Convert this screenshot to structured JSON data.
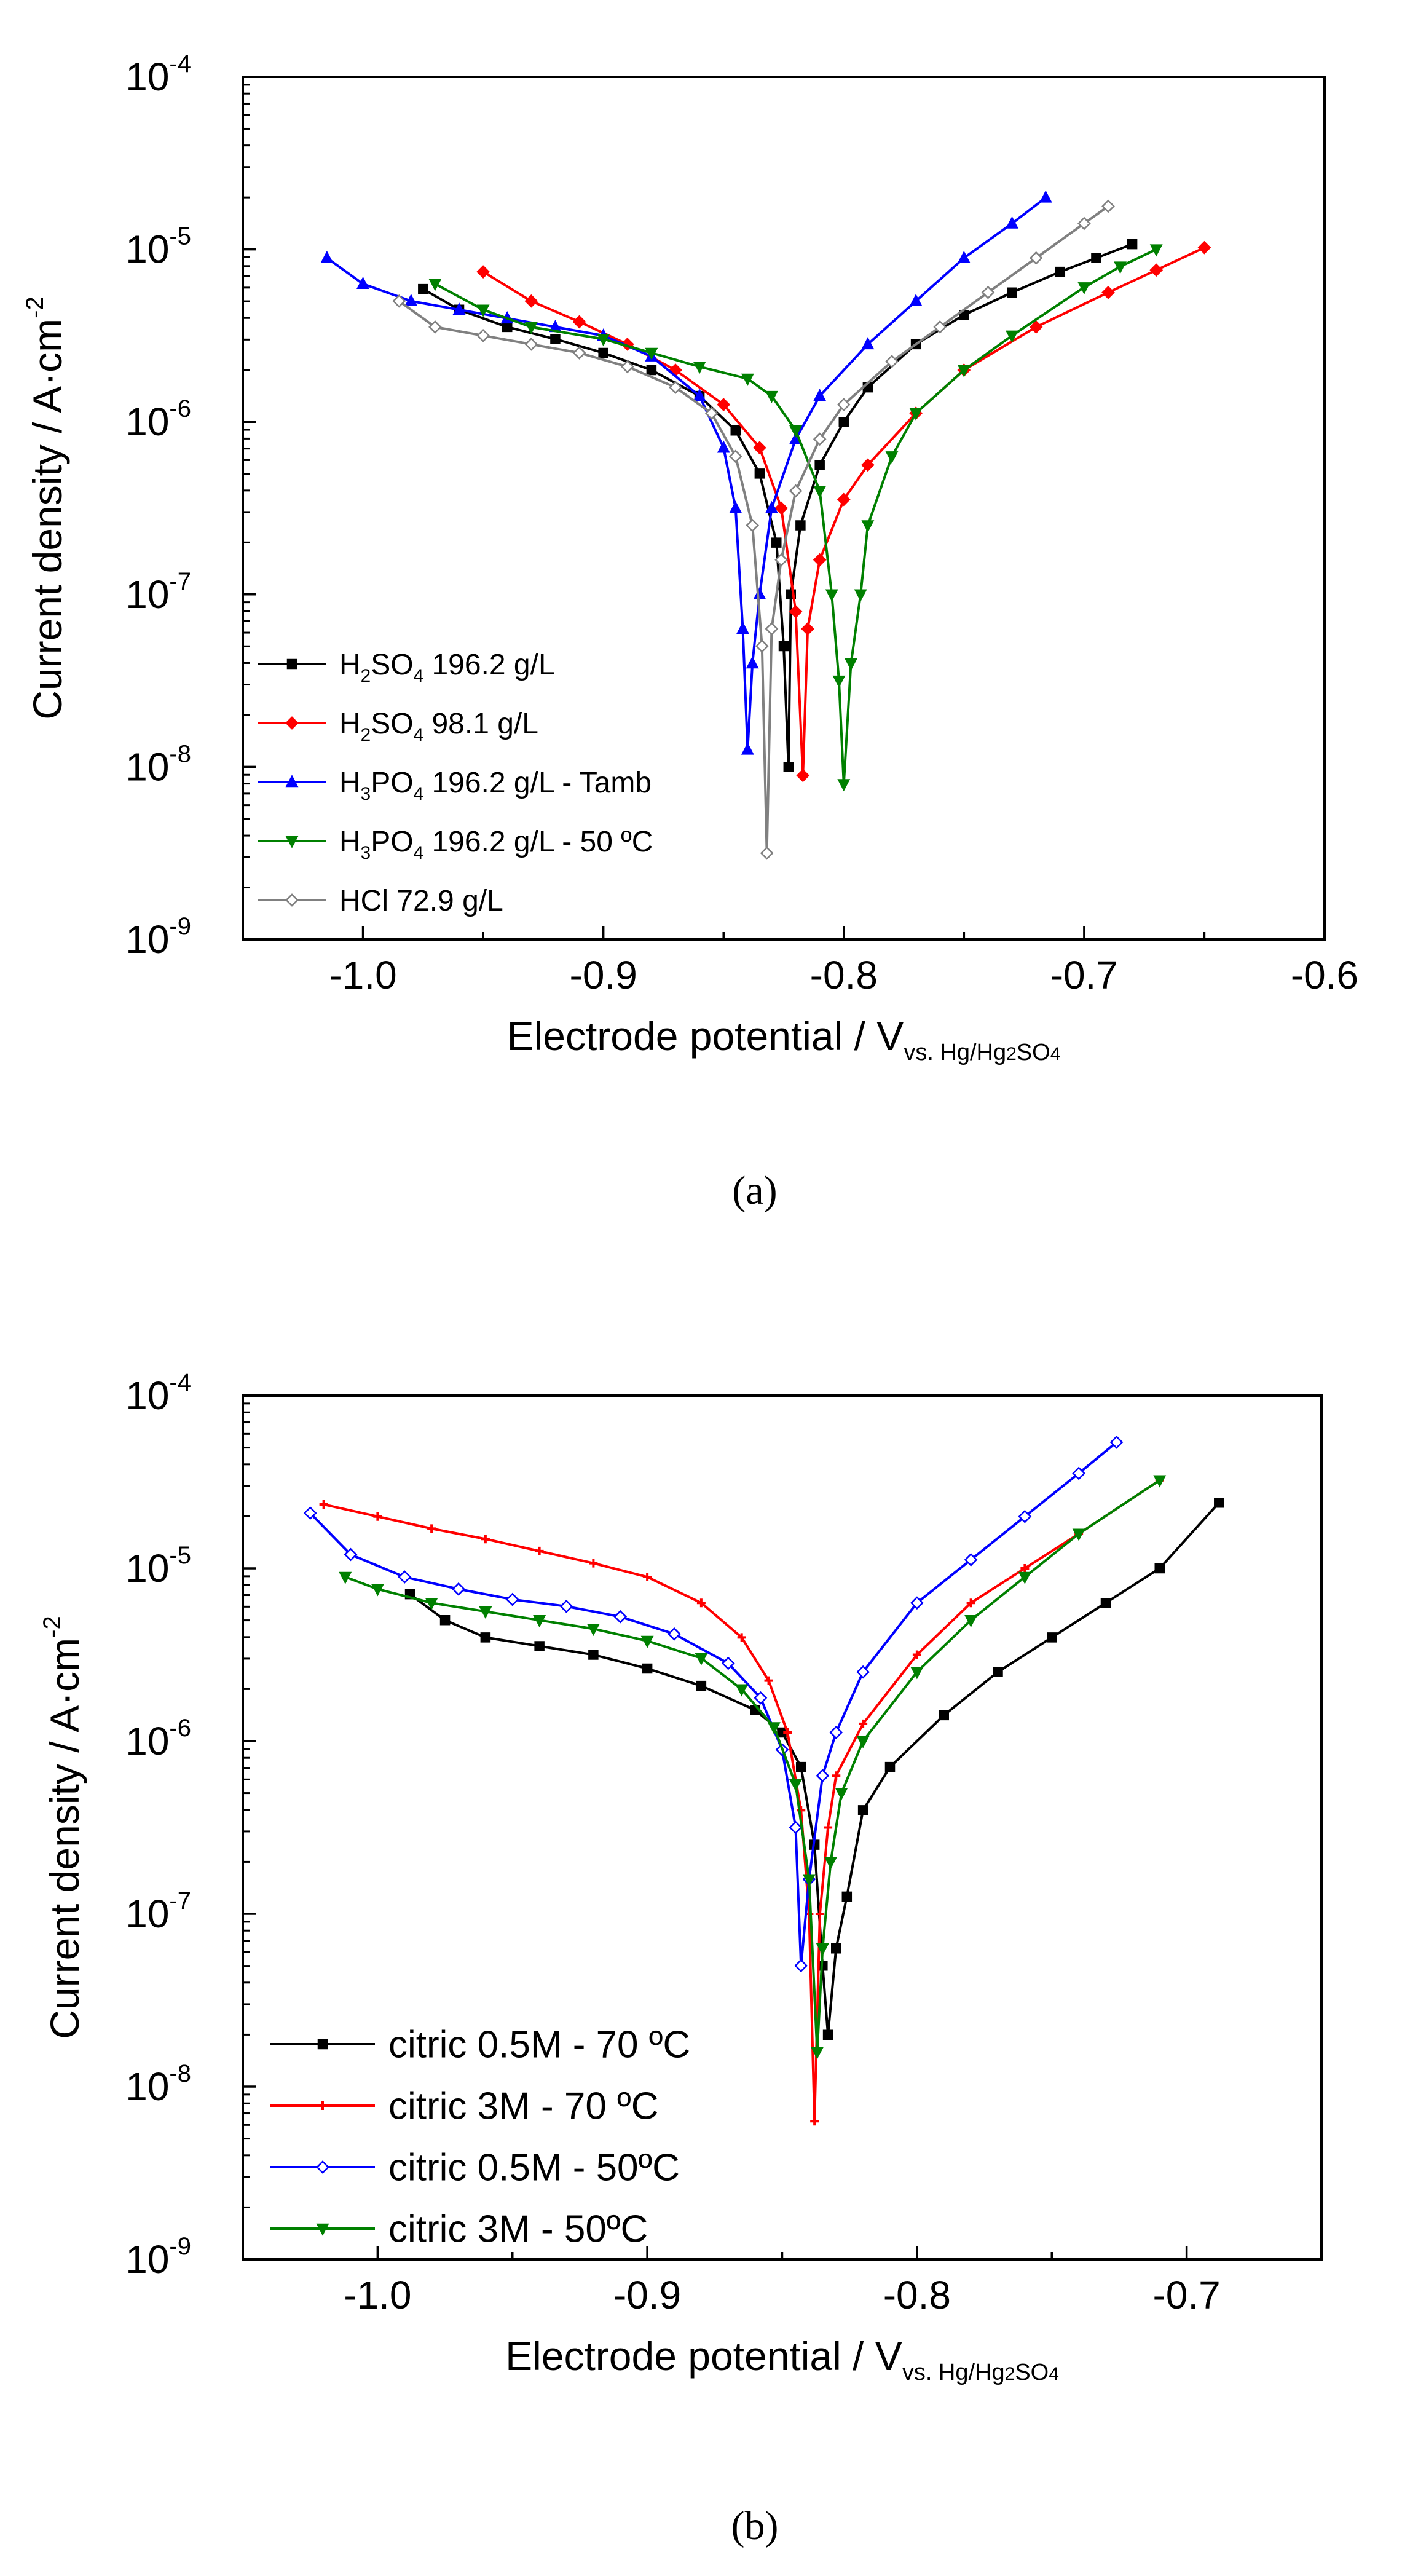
{
  "chart_data": [
    {
      "type": "line",
      "panel": "(a)",
      "xlabel_main": "Electrode potential / V",
      "xlabel_sub": "vs. Hg/Hg",
      "xlabel_sub2": "2",
      "xlabel_sub3": "SO",
      "xlabel_sub4": "4",
      "ylabel": "Current density / A·cm",
      "ylabel_sup": "-2",
      "xlim": [
        -1.05,
        -0.6
      ],
      "ylim_log10": [
        -9,
        -4
      ],
      "xticks": [
        -1.0,
        -0.9,
        -0.8,
        -0.7,
        -0.6
      ],
      "xtick_labels": [
        "-1.0",
        "-0.9",
        "-0.8",
        "-0.7",
        "-0.6"
      ],
      "yticks_exp": [
        -4,
        -5,
        -6,
        -7,
        -8,
        -9
      ],
      "ytick_base": "10",
      "ytick_exp_labels": [
        "-4",
        "-5",
        "-6",
        "-7",
        "-8",
        "-9"
      ],
      "legend_position": "lower-left",
      "series": [
        {
          "name": "H2SO4 196.2 g/L",
          "legend": [
            "H",
            "2",
            "SO",
            "4",
            " 196.2 g/L"
          ],
          "color": "#000000",
          "marker": "square",
          "x": [
            -0.975,
            -0.96,
            -0.94,
            -0.92,
            -0.9,
            -0.88,
            -0.86,
            -0.845,
            -0.835,
            -0.828,
            -0.825,
            -0.823,
            -0.822,
            -0.818,
            -0.81,
            -0.8,
            -0.79,
            -0.77,
            -0.75,
            -0.73,
            -0.71,
            -0.695,
            -0.68
          ],
          "log_y": [
            -5.23,
            -5.35,
            -5.45,
            -5.52,
            -5.6,
            -5.7,
            -5.85,
            -6.05,
            -6.3,
            -6.7,
            -7.3,
            -8.0,
            -7.0,
            -6.6,
            -6.25,
            -6.0,
            -5.8,
            -5.55,
            -5.38,
            -5.25,
            -5.13,
            -5.05,
            -4.97
          ]
        },
        {
          "name": "H2SO4 98.1 g/L",
          "legend": [
            "H",
            "2",
            "SO",
            "4",
            " 98.1 g/L"
          ],
          "color": "#ff0000",
          "marker": "diamond",
          "x": [
            -0.95,
            -0.93,
            -0.91,
            -0.89,
            -0.87,
            -0.85,
            -0.835,
            -0.826,
            -0.82,
            -0.817,
            -0.815,
            -0.81,
            -0.8,
            -0.79,
            -0.77,
            -0.75,
            -0.72,
            -0.69,
            -0.67,
            -0.65
          ],
          "log_y": [
            -5.13,
            -5.3,
            -5.42,
            -5.55,
            -5.7,
            -5.9,
            -6.15,
            -6.5,
            -7.1,
            -8.05,
            -7.2,
            -6.8,
            -6.45,
            -6.25,
            -5.95,
            -5.7,
            -5.45,
            -5.25,
            -5.12,
            -4.99
          ]
        },
        {
          "name": "H3PO4 196.2 g/L - Tamb",
          "legend": [
            "H",
            "3",
            "PO",
            "4",
            " 196.2 g/L - Tamb"
          ],
          "color": "#0000ff",
          "marker": "triangle-up",
          "x": [
            -1.015,
            -1.0,
            -0.98,
            -0.96,
            -0.94,
            -0.92,
            -0.9,
            -0.88,
            -0.86,
            -0.85,
            -0.845,
            -0.842,
            -0.84,
            -0.838,
            -0.835,
            -0.83,
            -0.82,
            -0.81,
            -0.79,
            -0.77,
            -0.75,
            -0.73,
            -0.716
          ],
          "log_y": [
            -5.05,
            -5.2,
            -5.3,
            -5.35,
            -5.4,
            -5.45,
            -5.5,
            -5.62,
            -5.85,
            -6.15,
            -6.5,
            -7.2,
            -7.9,
            -7.4,
            -7.0,
            -6.5,
            -6.1,
            -5.85,
            -5.55,
            -5.3,
            -5.05,
            -4.85,
            -4.7
          ]
        },
        {
          "name": "H3PO4 196.2 g/L - 50 ºC",
          "legend": [
            "H",
            "3",
            "PO",
            "4",
            " 196.2 g/L - 50 ºC"
          ],
          "color": "#008000",
          "marker": "triangle-down",
          "x": [
            -0.97,
            -0.95,
            -0.93,
            -0.9,
            -0.88,
            -0.86,
            -0.84,
            -0.83,
            -0.82,
            -0.81,
            -0.805,
            -0.802,
            -0.8,
            -0.797,
            -0.793,
            -0.79,
            -0.78,
            -0.77,
            -0.75,
            -0.73,
            -0.7,
            -0.685,
            -0.67
          ],
          "log_y": [
            -5.2,
            -5.35,
            -5.45,
            -5.52,
            -5.6,
            -5.68,
            -5.75,
            -5.85,
            -6.05,
            -6.4,
            -7.0,
            -7.5,
            -8.1,
            -7.4,
            -7.0,
            -6.6,
            -6.2,
            -5.95,
            -5.7,
            -5.5,
            -5.22,
            -5.1,
            -5.0
          ]
        },
        {
          "name": "HCl 72.9 g/L",
          "legend": [
            "HCl 72.9 g/L",
            "",
            "",
            "",
            ""
          ],
          "color": "#808080",
          "marker": "diamond-open",
          "x": [
            -0.985,
            -0.97,
            -0.95,
            -0.93,
            -0.91,
            -0.89,
            -0.87,
            -0.855,
            -0.845,
            -0.838,
            -0.834,
            -0.832,
            -0.83,
            -0.826,
            -0.82,
            -0.81,
            -0.8,
            -0.78,
            -0.76,
            -0.74,
            -0.72,
            -0.7,
            -0.69
          ],
          "log_y": [
            -5.3,
            -5.45,
            -5.5,
            -5.55,
            -5.6,
            -5.68,
            -5.8,
            -5.95,
            -6.2,
            -6.6,
            -7.3,
            -8.5,
            -7.2,
            -6.8,
            -6.4,
            -6.1,
            -5.9,
            -5.65,
            -5.45,
            -5.25,
            -5.05,
            -4.85,
            -4.75
          ]
        }
      ]
    },
    {
      "type": "line",
      "panel": "(b)",
      "xlabel_main": "Electrode potential / V",
      "xlabel_sub": "vs. Hg/Hg",
      "xlabel_sub2": "2",
      "xlabel_sub3": "SO",
      "xlabel_sub4": "4",
      "ylabel": "Current density / A·cm",
      "ylabel_sup": "-2",
      "xlim": [
        -1.05,
        -0.65
      ],
      "ylim_log10": [
        -9,
        -4
      ],
      "xticks": [
        -1.0,
        -0.9,
        -0.8,
        -0.7
      ],
      "xtick_labels": [
        "-1.0",
        "-0.9",
        "-0.8",
        "-0.7"
      ],
      "yticks_exp": [
        -4,
        -5,
        -6,
        -7,
        -8,
        -9
      ],
      "ytick_base": "10",
      "ytick_exp_labels": [
        "-4",
        "-5",
        "-6",
        "-7",
        "-8",
        "-9"
      ],
      "legend_position": "lower-left",
      "series": [
        {
          "name": "citric 0.5M - 70 ºC",
          "legend": [
            "citric 0.5M - 70 ºC",
            "",
            "",
            "",
            ""
          ],
          "color": "#000000",
          "marker": "square",
          "x": [
            -0.988,
            -0.975,
            -0.96,
            -0.94,
            -0.92,
            -0.9,
            -0.88,
            -0.86,
            -0.85,
            -0.843,
            -0.838,
            -0.835,
            -0.833,
            -0.83,
            -0.826,
            -0.82,
            -0.81,
            -0.79,
            -0.77,
            -0.75,
            -0.73,
            -0.71,
            -0.688
          ],
          "log_y": [
            -5.15,
            -5.3,
            -5.4,
            -5.45,
            -5.5,
            -5.58,
            -5.68,
            -5.82,
            -5.95,
            -6.15,
            -6.6,
            -7.3,
            -7.7,
            -7.2,
            -6.9,
            -6.4,
            -6.15,
            -5.85,
            -5.6,
            -5.4,
            -5.2,
            -5.0,
            -4.62
          ]
        },
        {
          "name": "citric 3M - 70 ºC",
          "legend": [
            "citric 3M - 70 ºC",
            "",
            "",
            "",
            ""
          ],
          "color": "#ff0000",
          "marker": "cross",
          "x": [
            -1.02,
            -1.0,
            -0.98,
            -0.96,
            -0.94,
            -0.92,
            -0.9,
            -0.88,
            -0.865,
            -0.855,
            -0.848,
            -0.843,
            -0.84,
            -0.838,
            -0.836,
            -0.833,
            -0.83,
            -0.82,
            -0.8,
            -0.78,
            -0.76,
            -0.74,
            -0.71
          ],
          "log_y": [
            -4.63,
            -4.7,
            -4.77,
            -4.83,
            -4.9,
            -4.97,
            -5.05,
            -5.2,
            -5.4,
            -5.65,
            -5.95,
            -6.4,
            -7.0,
            -8.2,
            -7.0,
            -6.5,
            -6.2,
            -5.9,
            -5.5,
            -5.2,
            -5.0,
            -4.8,
            -4.49
          ]
        },
        {
          "name": "citric 0.5M - 50ºC",
          "legend": [
            "citric 0.5M - 50ºC",
            "",
            "",
            "",
            ""
          ],
          "color": "#0000ff",
          "marker": "diamond-open",
          "x": [
            -1.025,
            -1.01,
            -0.99,
            -0.97,
            -0.95,
            -0.93,
            -0.91,
            -0.89,
            -0.87,
            -0.858,
            -0.85,
            -0.845,
            -0.843,
            -0.84,
            -0.835,
            -0.83,
            -0.82,
            -0.8,
            -0.78,
            -0.76,
            -0.74,
            -0.726
          ],
          "log_y": [
            -4.68,
            -4.92,
            -5.05,
            -5.12,
            -5.18,
            -5.22,
            -5.28,
            -5.38,
            -5.55,
            -5.75,
            -6.05,
            -6.5,
            -7.3,
            -6.8,
            -6.2,
            -5.95,
            -5.6,
            -5.2,
            -4.95,
            -4.7,
            -4.45,
            -4.27
          ]
        },
        {
          "name": "citric 3M - 50ºC",
          "legend": [
            "citric 3M - 50ºC",
            "",
            "",
            "",
            ""
          ],
          "color": "#008000",
          "marker": "triangle-down",
          "x": [
            -1.012,
            -1.0,
            -0.98,
            -0.96,
            -0.94,
            -0.92,
            -0.9,
            -0.88,
            -0.865,
            -0.853,
            -0.845,
            -0.84,
            -0.837,
            -0.835,
            -0.832,
            -0.828,
            -0.82,
            -0.8,
            -0.78,
            -0.76,
            -0.74,
            -0.71
          ],
          "log_y": [
            -5.05,
            -5.12,
            -5.2,
            -5.25,
            -5.3,
            -5.35,
            -5.42,
            -5.52,
            -5.7,
            -5.92,
            -6.25,
            -6.8,
            -7.8,
            -7.2,
            -6.7,
            -6.3,
            -6.0,
            -5.6,
            -5.3,
            -5.05,
            -4.8,
            -4.49
          ]
        }
      ]
    }
  ]
}
